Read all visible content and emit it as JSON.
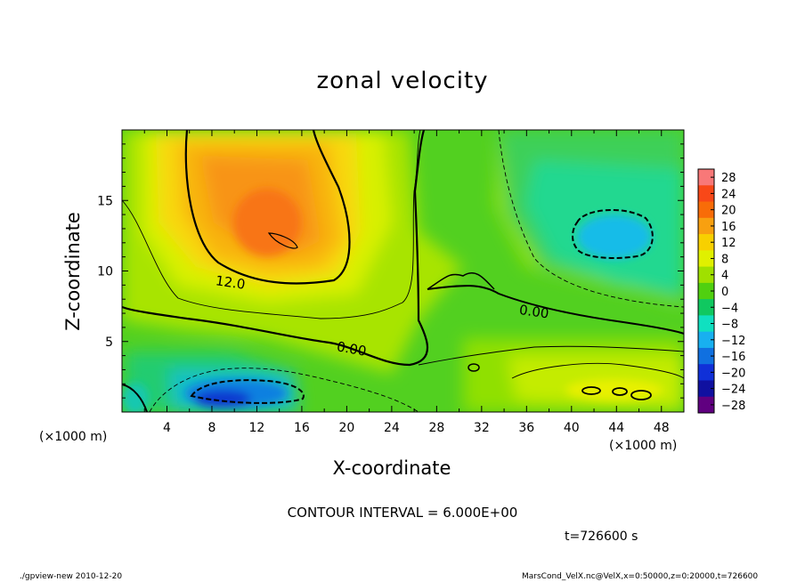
{
  "chart_data": {
    "type": "heatmap",
    "title": "zonal velocity",
    "xlabel": "X-coordinate",
    "ylabel": "Z-coordinate",
    "x_unit": "(×1000 m)",
    "xlim": [
      0,
      50
    ],
    "ylim": [
      0,
      20
    ],
    "x_ticks": [
      4,
      8,
      12,
      16,
      20,
      24,
      28,
      32,
      36,
      40,
      44,
      48
    ],
    "y_ticks": [
      5,
      10,
      15
    ],
    "colorbar": {
      "levels": [
        28,
        24,
        20,
        16,
        12,
        8,
        4,
        0,
        -4,
        -8,
        -12,
        -16,
        -20,
        -24,
        -28
      ],
      "labels": [
        "28",
        "24",
        "20",
        "16",
        "12",
        "8",
        "4",
        "0",
        "−4",
        "−8",
        "−12",
        "−16",
        "−20",
        "−24",
        "−28"
      ],
      "colors": [
        "#f87878",
        "#f84818",
        "#f86c08",
        "#f8a010",
        "#f8d000",
        "#e0f000",
        "#a0e000",
        "#50d010",
        "#10c860",
        "#10e0c0",
        "#18b0f0",
        "#1070e0",
        "#1030d8",
        "#1010a0",
        "#600080"
      ]
    },
    "contour_labels": [
      "12.0",
      "0.00",
      "0.00"
    ],
    "features": [
      {
        "kind": "max",
        "x": 12,
        "z": 15,
        "value": 20
      },
      {
        "kind": "min",
        "x": 11,
        "z": 1,
        "value": -18
      },
      {
        "kind": "min",
        "x": 44,
        "z": 12.5,
        "value": -12
      },
      {
        "kind": "max",
        "x": 44,
        "z": 1.5,
        "value": 12
      }
    ]
  },
  "contour_interval": "CONTOUR INTERVAL = 6.000E+00",
  "time_label": "t=726600 s",
  "footer_left": "./gpview-new  2010-12-20",
  "footer_right": "MarsCond_VelX.nc@VelX,x=0:50000,z=0:20000,t=726600"
}
